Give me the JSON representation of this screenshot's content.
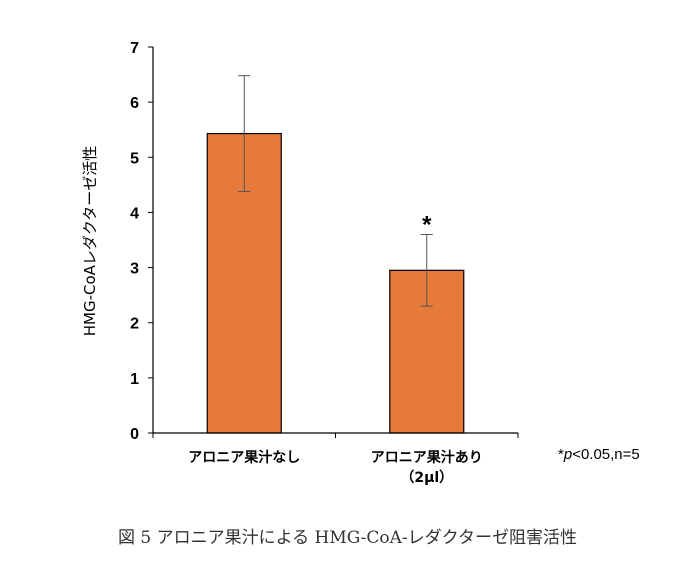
{
  "chart_data": {
    "type": "bar",
    "categories": [
      "アロニア果汁なし",
      "アロニア果汁あり"
    ],
    "category_sublabels": [
      "",
      "（2µl）"
    ],
    "values": [
      5.43,
      2.95
    ],
    "error": [
      1.05,
      0.65
    ],
    "significance": [
      "",
      "*"
    ],
    "ylabel": "HMG-CoAレダクターゼ活性",
    "ylim": [
      0,
      7
    ],
    "yticks": [
      "0",
      "1",
      "2",
      "3",
      "4",
      "5",
      "6",
      "7"
    ],
    "bar_color": "#e57a3a",
    "grid": false,
    "note": {
      "star": "*",
      "p": "p",
      "rest": "<0.05,n=5"
    }
  },
  "caption": "図 5 アロニア果汁による HMG-CoA-レダクターゼ阻害活性"
}
